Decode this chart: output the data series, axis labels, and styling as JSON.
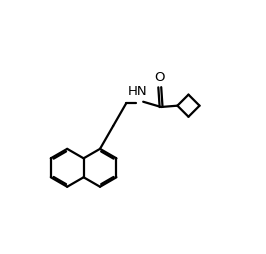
{
  "bg_color": "#ffffff",
  "line_color": "#000000",
  "line_width": 1.6,
  "font_size": 9.5,
  "figsize": [
    2.66,
    2.54
  ],
  "dpi": 100,
  "xlim": [
    0,
    10
  ],
  "ylim": [
    0,
    9.5
  ]
}
